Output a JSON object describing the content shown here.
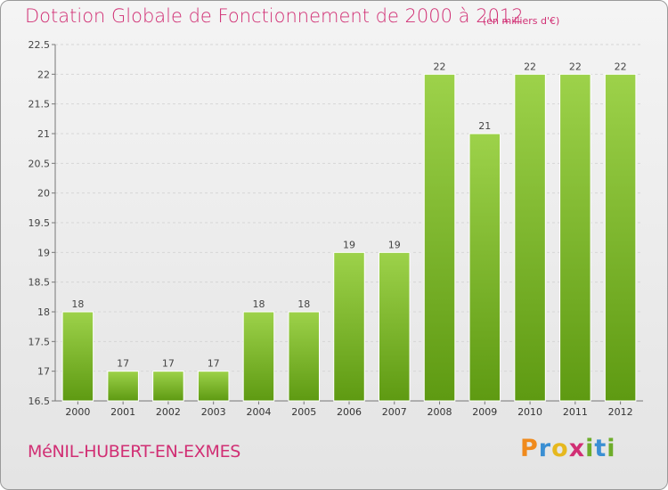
{
  "header": {
    "title": "Dotation Globale de Fonctionnement de 2000 à 2012",
    "unit": "(en milliers d'€)"
  },
  "footer": {
    "commune": "MéNIL-HUBERT-EN-EXMES",
    "logo": [
      "P",
      "r",
      "o",
      "x",
      "i",
      "t",
      "i"
    ],
    "logo_colors": [
      "#f08a1c",
      "#3a8fd3",
      "#e6b81e",
      "#d12f74",
      "#6dad2a",
      "#3a8fd3",
      "#6dad2a"
    ]
  },
  "colors": {
    "bar_top": "#9dd24a",
    "bar_bottom": "#5e9a12",
    "title": "#d12f74"
  },
  "chart_data": {
    "type": "bar",
    "categories": [
      "2000",
      "2001",
      "2002",
      "2003",
      "2004",
      "2005",
      "2006",
      "2007",
      "2008",
      "2009",
      "2010",
      "2011",
      "2012"
    ],
    "values": [
      18,
      17,
      17,
      17,
      18,
      18,
      19,
      19,
      22,
      21,
      22,
      22,
      22
    ],
    "labels": [
      "18",
      "17",
      "17",
      "17",
      "18",
      "18",
      "19",
      "19",
      "22",
      "21",
      "22",
      "22",
      "22"
    ],
    "yticks": [
      "16.5",
      "17",
      "17.5",
      "18",
      "18.5",
      "19",
      "19.5",
      "20",
      "20.5",
      "21",
      "21.5",
      "22",
      "22.5"
    ],
    "ylim": [
      16.5,
      22.5
    ],
    "grid": true
  }
}
